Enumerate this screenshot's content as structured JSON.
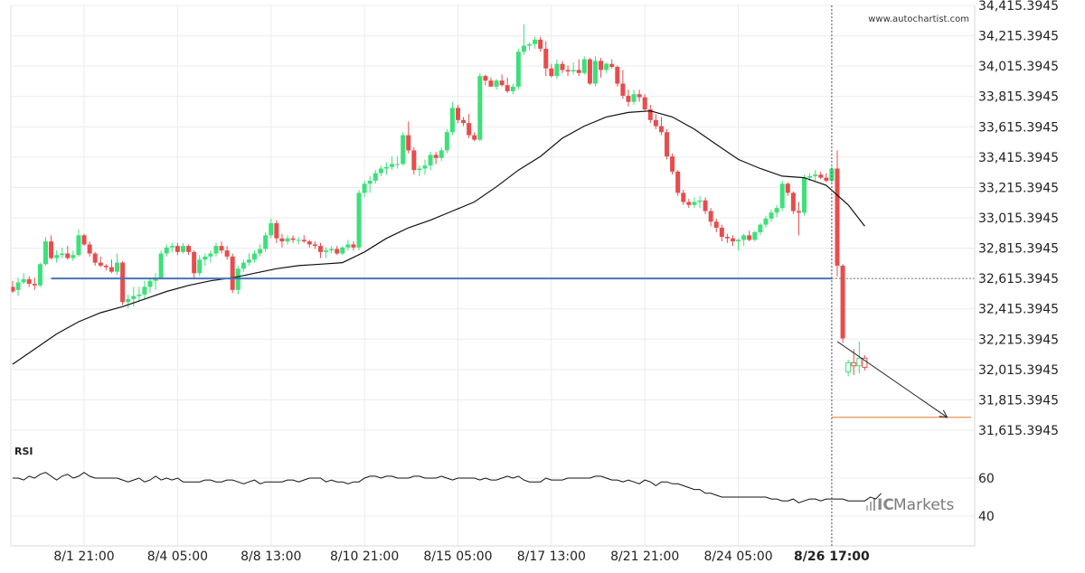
{
  "watermark_url": "www.autochartist.com",
  "brand": {
    "prefix": "IC",
    "name": "Markets",
    "color": "#7a7a7a"
  },
  "colors": {
    "bull": "#3de07a",
    "bear": "#e84c4c",
    "ma": "#111111",
    "support": "#4a74b4",
    "target": "#e6762e",
    "grid": "#ececec",
    "forecast": "#222222"
  },
  "chart_data": [
    {
      "type": "candlestick",
      "title": "",
      "ylim": [
        31615.3945,
        34415.3945
      ],
      "y_ticks": [
        "34,415.3945",
        "34,215.3945",
        "34,015.3945",
        "33,815.3945",
        "33,615.3945",
        "33,415.3945",
        "33,215.3945",
        "33,015.3945",
        "32,815.3945",
        "32,615.3945",
        "32,415.3945",
        "32,215.3945",
        "32,015.3945",
        "31,815.3945",
        "31,615.3945"
      ],
      "y_tick_values": [
        34415.3945,
        34215.3945,
        34015.3945,
        33815.3945,
        33615.3945,
        33415.3945,
        33215.3945,
        33015.3945,
        32815.3945,
        32615.3945,
        32415.3945,
        32215.3945,
        32015.3945,
        31815.3945,
        31615.3945
      ],
      "x_labels": [
        "8/1 21:00",
        "8/4 05:00",
        "8/8 13:00",
        "8/10 21:00",
        "8/15 05:00",
        "8/17 13:00",
        "8/21 21:00",
        "8/24 05:00",
        "8/26 17:00"
      ],
      "x_label_index": [
        13,
        30,
        47,
        64,
        81,
        98,
        115,
        132,
        149
      ],
      "bold_x_label": "8/26 17:00",
      "candles": [
        [
          32560,
          32600,
          32520,
          32530
        ],
        [
          32540,
          32620,
          32500,
          32590
        ],
        [
          32590,
          32650,
          32580,
          32610
        ],
        [
          32610,
          32630,
          32560,
          32580
        ],
        [
          32580,
          32620,
          32540,
          32570
        ],
        [
          32570,
          32720,
          32560,
          32710
        ],
        [
          32710,
          32890,
          32700,
          32860
        ],
        [
          32860,
          32900,
          32740,
          32750
        ],
        [
          32750,
          32800,
          32720,
          32770
        ],
        [
          32770,
          32820,
          32750,
          32780
        ],
        [
          32780,
          32830,
          32740,
          32750
        ],
        [
          32750,
          32800,
          32730,
          32770
        ],
        [
          32770,
          32940,
          32760,
          32900
        ],
        [
          32900,
          32910,
          32830,
          32840
        ],
        [
          32840,
          32860,
          32760,
          32780
        ],
        [
          32780,
          32790,
          32700,
          32720
        ],
        [
          32720,
          32760,
          32690,
          32700
        ],
        [
          32700,
          32710,
          32670,
          32690
        ],
        [
          32690,
          32740,
          32650,
          32660
        ],
        [
          32660,
          32780,
          32640,
          32720
        ],
        [
          32720,
          32730,
          32440,
          32460
        ],
        [
          32460,
          32510,
          32420,
          32480
        ],
        [
          32480,
          32560,
          32430,
          32500
        ],
        [
          32500,
          32560,
          32470,
          32510
        ],
        [
          32510,
          32600,
          32480,
          32560
        ],
        [
          32560,
          32620,
          32520,
          32600
        ],
        [
          32600,
          32650,
          32540,
          32620
        ],
        [
          32620,
          32800,
          32610,
          32780
        ],
        [
          32780,
          32840,
          32760,
          32820
        ],
        [
          32820,
          32850,
          32790,
          32830
        ],
        [
          32830,
          32850,
          32770,
          32790
        ],
        [
          32790,
          32850,
          32780,
          32830
        ],
        [
          32830,
          32840,
          32770,
          32790
        ],
        [
          32790,
          32800,
          32610,
          32650
        ],
        [
          32650,
          32770,
          32630,
          32740
        ],
        [
          32740,
          32780,
          32700,
          32760
        ],
        [
          32760,
          32800,
          32720,
          32780
        ],
        [
          32780,
          32850,
          32760,
          32830
        ],
        [
          32830,
          32860,
          32780,
          32800
        ],
        [
          32800,
          32830,
          32740,
          32760
        ],
        [
          32760,
          32780,
          32520,
          32540
        ],
        [
          32540,
          32700,
          32510,
          32680
        ],
        [
          32680,
          32740,
          32660,
          32720
        ],
        [
          32720,
          32780,
          32700,
          32740
        ],
        [
          32740,
          32800,
          32720,
          32780
        ],
        [
          32780,
          32840,
          32760,
          32810
        ],
        [
          32810,
          32920,
          32790,
          32900
        ],
        [
          32900,
          33010,
          32880,
          32980
        ],
        [
          32980,
          33000,
          32850,
          32880
        ],
        [
          32880,
          32910,
          32820,
          32860
        ],
        [
          32860,
          32900,
          32840,
          32880
        ],
        [
          32880,
          32900,
          32850,
          32870
        ],
        [
          32870,
          32890,
          32840,
          32870
        ],
        [
          32870,
          32900,
          32850,
          32860
        ],
        [
          32860,
          32870,
          32820,
          32840
        ],
        [
          32840,
          32860,
          32810,
          32830
        ],
        [
          32830,
          32850,
          32750,
          32790
        ],
        [
          32790,
          32820,
          32750,
          32800
        ],
        [
          32800,
          32830,
          32780,
          32810
        ],
        [
          32810,
          32830,
          32770,
          32780
        ],
        [
          32780,
          32830,
          32770,
          32820
        ],
        [
          32820,
          32870,
          32800,
          32840
        ],
        [
          32840,
          32860,
          32800,
          32820
        ],
        [
          32820,
          33200,
          32800,
          33180
        ],
        [
          33180,
          33260,
          33150,
          33240
        ],
        [
          33240,
          33290,
          33180,
          33260
        ],
        [
          33260,
          33330,
          33240,
          33310
        ],
        [
          33310,
          33360,
          33290,
          33340
        ],
        [
          33340,
          33380,
          33300,
          33350
        ],
        [
          33350,
          33420,
          33330,
          33370
        ],
        [
          33370,
          33420,
          33340,
          33370
        ],
        [
          33370,
          33580,
          33360,
          33560
        ],
        [
          33560,
          33650,
          33440,
          33460
        ],
        [
          33460,
          33480,
          33300,
          33330
        ],
        [
          33330,
          33360,
          33290,
          33340
        ],
        [
          33340,
          33400,
          33300,
          33360
        ],
        [
          33360,
          33450,
          33330,
          33430
        ],
        [
          33430,
          33450,
          33370,
          33410
        ],
        [
          33410,
          33480,
          33390,
          33460
        ],
        [
          33460,
          33600,
          33440,
          33580
        ],
        [
          33580,
          33780,
          33560,
          33740
        ],
        [
          33740,
          33760,
          33640,
          33660
        ],
        [
          33660,
          33680,
          33620,
          33640
        ],
        [
          33640,
          33700,
          33540,
          33560
        ],
        [
          33560,
          33580,
          33520,
          33530
        ],
        [
          33530,
          33970,
          33520,
          33950
        ],
        [
          33950,
          33960,
          33890,
          33920
        ],
        [
          33920,
          33940,
          33880,
          33880
        ],
        [
          33880,
          33930,
          33860,
          33920
        ],
        [
          33920,
          33960,
          33880,
          33890
        ],
        [
          33890,
          33940,
          33840,
          33850
        ],
        [
          33850,
          33900,
          33830,
          33880
        ],
        [
          33880,
          34130,
          33860,
          34110
        ],
        [
          34110,
          34290,
          34090,
          34150
        ],
        [
          34150,
          34170,
          34120,
          34160
        ],
        [
          34160,
          34210,
          34130,
          34190
        ],
        [
          34190,
          34210,
          34110,
          34130
        ],
        [
          34130,
          34180,
          33950,
          34000
        ],
        [
          34000,
          34030,
          33940,
          33950
        ],
        [
          33950,
          34060,
          33930,
          34030
        ],
        [
          34030,
          34050,
          33970,
          33990
        ],
        [
          33990,
          34020,
          33950,
          33980
        ],
        [
          33980,
          34040,
          33960,
          33990
        ],
        [
          33990,
          34060,
          33950,
          33970
        ],
        [
          33970,
          34080,
          33960,
          34060
        ],
        [
          34060,
          34070,
          33890,
          33900
        ],
        [
          33900,
          34080,
          33880,
          34050
        ],
        [
          34050,
          34070,
          33940,
          33990
        ],
        [
          33990,
          34040,
          33970,
          34030
        ],
        [
          34030,
          34060,
          34000,
          34010
        ],
        [
          34010,
          34020,
          33880,
          33900
        ],
        [
          33900,
          33990,
          33800,
          33820
        ],
        [
          33820,
          33860,
          33750,
          33780
        ],
        [
          33780,
          33860,
          33760,
          33830
        ],
        [
          33830,
          33860,
          33780,
          33810
        ],
        [
          33810,
          33830,
          33720,
          33730
        ],
        [
          33730,
          33760,
          33640,
          33660
        ],
        [
          33660,
          33700,
          33600,
          33620
        ],
        [
          33620,
          33680,
          33560,
          33580
        ],
        [
          33580,
          33600,
          33400,
          33420
        ],
        [
          33420,
          33440,
          33300,
          33320
        ],
        [
          33320,
          33330,
          33160,
          33180
        ],
        [
          33180,
          33200,
          33100,
          33120
        ],
        [
          33120,
          33140,
          33080,
          33100
        ],
        [
          33100,
          33150,
          33080,
          33120
        ],
        [
          33120,
          33160,
          33080,
          33130
        ],
        [
          33130,
          33150,
          33040,
          33060
        ],
        [
          33060,
          33080,
          32960,
          32990
        ],
        [
          32990,
          33010,
          32920,
          32950
        ],
        [
          32950,
          32970,
          32860,
          32890
        ],
        [
          32890,
          32910,
          32850,
          32880
        ],
        [
          32880,
          32900,
          32830,
          32860
        ],
        [
          32860,
          32880,
          32800,
          32870
        ],
        [
          32870,
          32910,
          32830,
          32900
        ],
        [
          32900,
          32930,
          32860,
          32870
        ],
        [
          32870,
          32930,
          32860,
          32920
        ],
        [
          32920,
          32980,
          32900,
          32970
        ],
        [
          32970,
          33030,
          32950,
          33010
        ],
        [
          33010,
          33070,
          32990,
          33050
        ],
        [
          33050,
          33100,
          33020,
          33080
        ],
        [
          33080,
          33260,
          33060,
          33240
        ],
        [
          33240,
          33250,
          33160,
          33180
        ],
        [
          33180,
          33190,
          33040,
          33060
        ],
        [
          33060,
          33120,
          32900,
          33050
        ],
        [
          33050,
          33300,
          33030,
          33280
        ],
        [
          33280,
          33310,
          33260,
          33290
        ],
        [
          33290,
          33330,
          33260,
          33300
        ],
        [
          33300,
          33320,
          33270,
          33280
        ],
        [
          33280,
          33310,
          33250,
          33260
        ],
        [
          33260,
          33350,
          33240,
          33340
        ],
        [
          33340,
          33460,
          32630,
          32700
        ],
        [
          32700,
          32710,
          32190,
          32220
        ],
        [
          32000,
          32080,
          31970,
          32060
        ],
        [
          32060,
          32150,
          31980,
          32040
        ],
        [
          32040,
          32200,
          31990,
          32090
        ],
        [
          32090,
          32110,
          32010,
          32030
        ]
      ],
      "moving_average": [
        [
          0,
          32050
        ],
        [
          4,
          32150
        ],
        [
          8,
          32250
        ],
        [
          12,
          32330
        ],
        [
          16,
          32390
        ],
        [
          20,
          32430
        ],
        [
          24,
          32480
        ],
        [
          28,
          32530
        ],
        [
          32,
          32570
        ],
        [
          36,
          32600
        ],
        [
          40,
          32620
        ],
        [
          44,
          32650
        ],
        [
          48,
          32680
        ],
        [
          52,
          32700
        ],
        [
          56,
          32710
        ],
        [
          60,
          32720
        ],
        [
          64,
          32790
        ],
        [
          68,
          32880
        ],
        [
          72,
          32950
        ],
        [
          76,
          33000
        ],
        [
          80,
          33060
        ],
        [
          84,
          33120
        ],
        [
          88,
          33220
        ],
        [
          92,
          33330
        ],
        [
          96,
          33420
        ],
        [
          100,
          33540
        ],
        [
          104,
          33620
        ],
        [
          108,
          33680
        ],
        [
          112,
          33710
        ],
        [
          116,
          33720
        ],
        [
          120,
          33680
        ],
        [
          124,
          33600
        ],
        [
          128,
          33500
        ],
        [
          132,
          33400
        ],
        [
          136,
          33340
        ],
        [
          140,
          33290
        ],
        [
          144,
          33280
        ],
        [
          148,
          33230
        ],
        [
          152,
          33100
        ],
        [
          155,
          32960
        ]
      ],
      "support_level": 32615.3945,
      "support_start_index": 7,
      "target_level": 31700,
      "forecast_start": [
        150,
        32200
      ],
      "forecast_end_index": 170,
      "current_time_index": 149
    },
    {
      "type": "line",
      "title": "RSI",
      "ylim": [
        30,
        80
      ],
      "y_ticks": [
        "60",
        "40"
      ],
      "y_tick_values": [
        60,
        40
      ],
      "values": [
        60,
        60,
        59,
        61,
        60,
        62,
        63,
        61,
        59,
        61,
        62,
        60,
        61,
        63,
        61,
        60,
        60,
        60,
        60,
        60,
        59,
        58,
        59,
        60,
        58,
        59,
        61,
        59,
        60,
        59,
        60,
        58,
        58,
        58,
        58,
        59,
        59,
        58,
        58,
        59,
        59,
        58,
        57,
        58,
        59,
        57,
        58,
        58,
        58,
        58,
        59,
        59,
        58,
        59,
        60,
        60,
        60,
        58,
        59,
        58,
        58,
        57,
        58,
        58,
        60,
        61,
        61,
        60,
        61,
        61,
        60,
        60,
        60,
        61,
        61,
        60,
        60,
        60,
        61,
        60,
        59,
        60,
        60,
        60,
        60,
        59,
        60,
        59,
        59,
        60,
        61,
        60,
        61,
        59,
        58,
        58,
        58,
        60,
        59,
        59,
        59,
        60,
        60,
        60,
        60,
        60,
        61,
        61,
        60,
        59,
        59,
        58,
        59,
        58,
        57,
        59,
        58,
        56,
        58,
        58,
        57,
        57,
        56,
        55,
        54,
        54,
        52,
        52,
        51,
        50,
        50,
        50,
        50,
        50,
        50,
        50,
        50,
        50,
        49,
        49,
        48,
        48,
        49,
        47,
        48,
        49,
        49,
        48,
        49,
        49,
        49,
        49,
        48,
        48,
        48,
        48,
        50,
        49,
        52
      ]
    }
  ]
}
